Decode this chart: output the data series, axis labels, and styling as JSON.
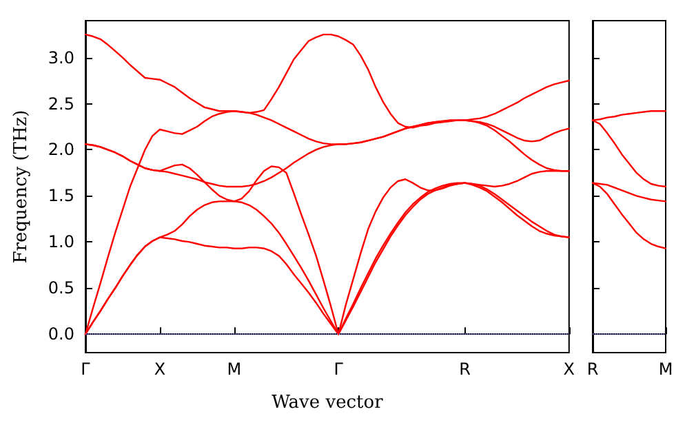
{
  "chart_data": [
    {
      "type": "line",
      "xlabel": "Wave vector",
      "ylabel": "Frequency (THz)",
      "ylim": [
        -0.2,
        3.4
      ],
      "categories": [
        "Γ",
        null,
        null,
        null,
        null,
        null,
        null,
        null,
        null,
        null,
        "X",
        null,
        null,
        null,
        null,
        null,
        null,
        null,
        null,
        null,
        "M",
        null,
        null,
        null,
        null,
        null,
        null,
        null,
        null,
        null,
        null,
        null,
        null,
        null,
        "Γ",
        null,
        null,
        null,
        null,
        null,
        null,
        null,
        null,
        null,
        null,
        null,
        null,
        null,
        null,
        null,
        null,
        "R",
        null,
        null,
        null,
        null,
        null,
        null,
        null,
        null,
        null,
        null,
        null,
        null,
        null,
        "X"
      ],
      "yticks": [
        {
          "value": 0,
          "label": "0.0"
        },
        {
          "value": 0.5,
          "label": "0.5"
        },
        {
          "value": 1,
          "label": "1.0"
        },
        {
          "value": 1.5,
          "label": "1.5"
        },
        {
          "value": 2,
          "label": "2.0"
        },
        {
          "value": 2.5,
          "label": "2.5"
        },
        {
          "value": 3,
          "label": "3.0"
        }
      ],
      "line_style": "solid",
      "ref_lines": [
        {
          "axis": "y",
          "value": 0,
          "color": "#8080ff",
          "line_style": "dotted"
        }
      ],
      "series": [
        {
          "color": "#ff0000",
          "values": [
            3.25,
            3.23,
            3.2,
            3.14,
            3.07,
            3.0,
            2.92,
            2.85,
            2.78,
            2.77,
            2.76,
            2.72,
            2.68,
            2.62,
            2.56,
            2.51,
            2.46,
            2.44,
            2.42,
            2.42,
            2.42,
            2.41,
            2.4,
            2.41,
            2.43,
            2.55,
            2.68,
            2.83,
            2.98,
            3.08,
            3.18,
            3.22,
            3.25,
            3.25,
            3.23,
            3.19,
            3.14,
            3.02,
            2.87,
            2.68,
            2.52,
            2.39,
            2.29,
            2.25,
            2.24,
            2.26,
            2.27,
            2.29,
            2.3,
            2.31,
            2.32,
            2.32,
            2.33,
            2.34,
            2.36,
            2.39,
            2.43,
            2.47,
            2.51,
            2.56,
            2.6,
            2.64,
            2.68,
            2.71,
            2.73,
            2.75
          ]
        },
        {
          "color": "#ff0000",
          "values": [
            0,
            0.28,
            0.55,
            0.83,
            1.1,
            1.35,
            1.6,
            1.8,
            2.0,
            2.15,
            2.22,
            2.2,
            2.18,
            2.17,
            2.21,
            2.25,
            2.31,
            2.36,
            2.39,
            2.41,
            2.42,
            2.41,
            2.4,
            2.38,
            2.35,
            2.32,
            2.28,
            2.24,
            2.2,
            2.16,
            2.12,
            2.09,
            2.07,
            2.06,
            2.06,
            2.06,
            2.07,
            2.08,
            2.1,
            2.12,
            2.14,
            2.17,
            2.2,
            2.23,
            2.25,
            2.27,
            2.29,
            2.3,
            2.31,
            2.32,
            2.32,
            2.32,
            2.31,
            2.3,
            2.28,
            2.25,
            2.21,
            2.17,
            2.13,
            2.1,
            2.09,
            2.1,
            2.14,
            2.18,
            2.21,
            2.23
          ]
        },
        {
          "color": "#ff0000",
          "values": [
            2.06,
            2.05,
            2.03,
            2.0,
            1.97,
            1.93,
            1.88,
            1.84,
            1.8,
            1.78,
            1.77,
            1.76,
            1.74,
            1.72,
            1.7,
            1.68,
            1.65,
            1.63,
            1.61,
            1.6,
            1.6,
            1.6,
            1.61,
            1.63,
            1.66,
            1.7,
            1.75,
            1.8,
            1.86,
            1.91,
            1.96,
            2.0,
            2.03,
            2.05,
            2.06,
            2.06,
            2.07,
            2.08,
            2.1,
            2.12,
            2.14,
            2.17,
            2.2,
            2.23,
            2.25,
            2.27,
            2.29,
            2.3,
            2.31,
            2.32,
            2.32,
            2.32,
            2.31,
            2.29,
            2.26,
            2.21,
            2.15,
            2.09,
            2.02,
            1.95,
            1.89,
            1.84,
            1.8,
            1.78,
            1.77,
            1.77
          ]
        },
        {
          "color": "#ff0000",
          "values": [
            2.06,
            2.05,
            2.03,
            2.0,
            1.97,
            1.93,
            1.88,
            1.84,
            1.8,
            1.78,
            1.77,
            1.8,
            1.83,
            1.84,
            1.8,
            1.73,
            1.65,
            1.57,
            1.5,
            1.46,
            1.44,
            1.47,
            1.55,
            1.67,
            1.77,
            1.82,
            1.81,
            1.75,
            1.53,
            1.3,
            1.08,
            0.85,
            0.58,
            0.3,
            0,
            0.32,
            0.6,
            0.88,
            1.14,
            1.33,
            1.48,
            1.59,
            1.66,
            1.68,
            1.64,
            1.59,
            1.56,
            1.56,
            1.58,
            1.61,
            1.63,
            1.64,
            1.63,
            1.62,
            1.61,
            1.6,
            1.61,
            1.63,
            1.66,
            1.7,
            1.74,
            1.76,
            1.77,
            1.77,
            1.77,
            1.77
          ]
        },
        {
          "color": "#ff0000",
          "values": [
            0,
            0.13,
            0.25,
            0.38,
            0.5,
            0.63,
            0.75,
            0.86,
            0.95,
            1.01,
            1.05,
            1.08,
            1.12,
            1.19,
            1.28,
            1.35,
            1.4,
            1.43,
            1.44,
            1.44,
            1.44,
            1.43,
            1.4,
            1.35,
            1.28,
            1.2,
            1.1,
            0.98,
            0.85,
            0.72,
            0.58,
            0.43,
            0.28,
            0.14,
            0,
            0.17,
            0.33,
            0.5,
            0.66,
            0.82,
            0.96,
            1.09,
            1.21,
            1.32,
            1.41,
            1.48,
            1.54,
            1.58,
            1.61,
            1.63,
            1.64,
            1.64,
            1.63,
            1.61,
            1.57,
            1.52,
            1.46,
            1.4,
            1.34,
            1.28,
            1.22,
            1.17,
            1.12,
            1.08,
            1.06,
            1.05
          ]
        },
        {
          "color": "#ff0000",
          "values": [
            0,
            0.13,
            0.25,
            0.38,
            0.5,
            0.63,
            0.75,
            0.86,
            0.95,
            1.01,
            1.05,
            1.04,
            1.03,
            1.01,
            1.0,
            0.98,
            0.96,
            0.95,
            0.94,
            0.94,
            0.93,
            0.93,
            0.94,
            0.94,
            0.93,
            0.9,
            0.85,
            0.76,
            0.65,
            0.55,
            0.45,
            0.34,
            0.22,
            0.11,
            0,
            0.15,
            0.3,
            0.46,
            0.62,
            0.78,
            0.92,
            1.06,
            1.18,
            1.29,
            1.38,
            1.46,
            1.52,
            1.56,
            1.59,
            1.62,
            1.63,
            1.64,
            1.62,
            1.59,
            1.55,
            1.49,
            1.43,
            1.36,
            1.29,
            1.23,
            1.17,
            1.12,
            1.09,
            1.07,
            1.06,
            1.05
          ]
        }
      ]
    },
    {
      "type": "line",
      "ylim": [
        -0.2,
        3.4
      ],
      "categories": [
        "R",
        null,
        null,
        null,
        null,
        null,
        null,
        null,
        null,
        null,
        "M"
      ],
      "yticks": [
        {
          "value": 0,
          "label": null
        },
        {
          "value": 0.5,
          "label": null
        },
        {
          "value": 1,
          "label": null
        },
        {
          "value": 1.5,
          "label": null
        },
        {
          "value": 2,
          "label": null
        },
        {
          "value": 2.5,
          "label": null
        },
        {
          "value": 3,
          "label": null
        }
      ],
      "tick_labels": "x",
      "line_style": "solid",
      "ref_lines": [
        {
          "axis": "y",
          "value": 0,
          "color": "#8080ff",
          "line_style": "dotted"
        }
      ],
      "series": [
        {
          "color": "#ff0000",
          "values": [
            2.32,
            2.33,
            2.35,
            2.36,
            2.38,
            2.39,
            2.4,
            2.41,
            2.42,
            2.42,
            2.42
          ]
        },
        {
          "color": "#ff0000",
          "values": [
            2.32,
            2.28,
            2.18,
            2.07,
            1.95,
            1.85,
            1.75,
            1.68,
            1.63,
            1.61,
            1.6
          ]
        },
        {
          "color": "#ff0000",
          "values": [
            1.64,
            1.63,
            1.62,
            1.59,
            1.56,
            1.53,
            1.5,
            1.48,
            1.46,
            1.45,
            1.44
          ]
        },
        {
          "color": "#ff0000",
          "values": [
            1.64,
            1.6,
            1.52,
            1.41,
            1.3,
            1.2,
            1.1,
            1.03,
            0.98,
            0.95,
            0.93
          ]
        }
      ]
    }
  ]
}
